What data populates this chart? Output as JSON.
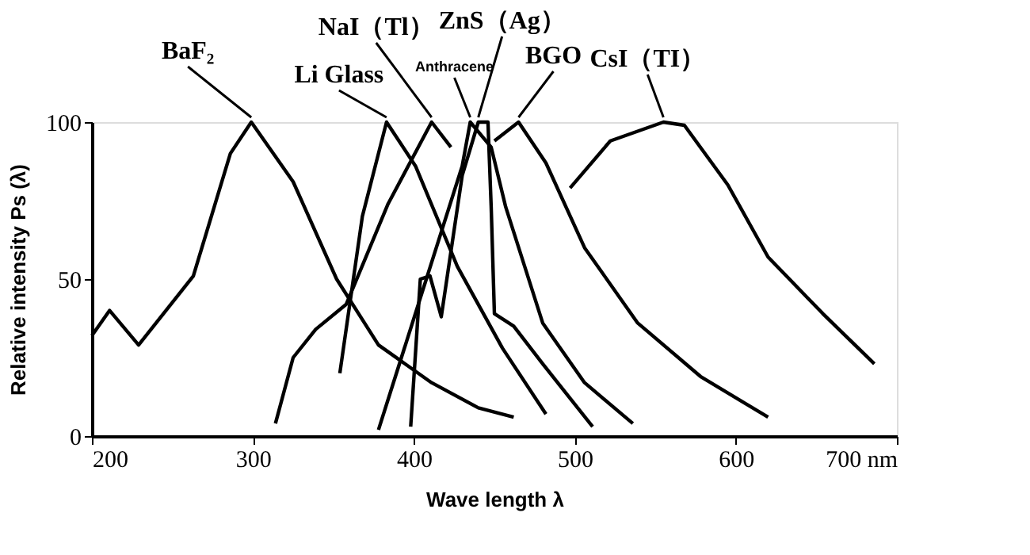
{
  "chart_data": {
    "type": "line",
    "xlabel": "Wave length λ",
    "ylabel": "Relative intensity Ps (λ)",
    "xlim": [
      200,
      700
    ],
    "ylim": [
      0,
      100
    ],
    "xticks": [
      200,
      300,
      400,
      500,
      600,
      {
        "value": 700,
        "label": "700 nm"
      }
    ],
    "yticks": [
      0,
      50,
      100
    ],
    "grid": false,
    "line_style": "solid",
    "series": [
      {
        "name": "BaF₂",
        "color": "#000000",
        "x": [
          200,
          211,
          229,
          263,
          286,
          299,
          325,
          352,
          378,
          411,
          440,
          462
        ],
        "values": [
          32,
          40,
          29,
          51,
          90,
          100,
          81,
          50,
          29,
          17,
          9,
          6
        ]
      },
      {
        "name": "Li Glass",
        "color": "#000000",
        "x": [
          354,
          368,
          383,
          401,
          427,
          455,
          482
        ],
        "values": [
          20,
          70,
          100,
          86,
          54,
          28,
          7
        ]
      },
      {
        "name": "NaI（Tl）",
        "color": "#000000",
        "x": [
          314,
          325,
          339,
          358,
          384,
          411,
          423
        ],
        "values": [
          4,
          25,
          34,
          42,
          74,
          100,
          92
        ]
      },
      {
        "name": "Anthracene",
        "color": "#000000",
        "x": [
          378,
          430,
          435,
          448,
          457,
          480,
          506,
          536
        ],
        "values": [
          2,
          86,
          100,
          92,
          73,
          36,
          17,
          4
        ]
      },
      {
        "name": "ZnS（Ag）",
        "color": "#000000",
        "x": [
          398,
          404,
          410,
          417,
          430,
          440,
          446,
          448,
          450,
          462,
          480,
          511
        ],
        "values": [
          3,
          50,
          51,
          38,
          83,
          100,
          100,
          73,
          39,
          35,
          23,
          3
        ]
      },
      {
        "name": "BGO",
        "color": "#000000",
        "x": [
          450,
          465,
          482,
          506,
          539,
          578,
          620
        ],
        "values": [
          94,
          100,
          87,
          60,
          36,
          19,
          6
        ]
      },
      {
        "name": "CsI（TI）",
        "color": "#000000",
        "x": [
          497,
          522,
          555,
          568,
          595,
          620,
          654,
          686
        ],
        "values": [
          79,
          94,
          100,
          99,
          80,
          57,
          39,
          23
        ]
      }
    ]
  }
}
